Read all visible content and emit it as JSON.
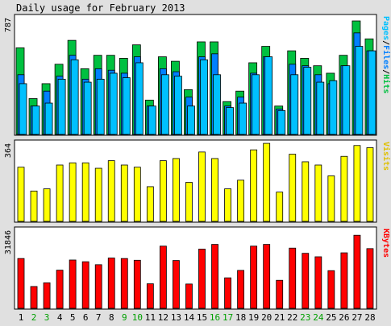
{
  "title": "Daily usage for February 2013",
  "colors": {
    "background": "#e0e0e0",
    "panel": "#ffffff",
    "hits": "#00c040",
    "files": "#0080ff",
    "pages": "#00c0ff",
    "visits": "#ffff00",
    "kbytes": "#ff0000",
    "weekday_label": "#000000",
    "weekend_label": "#00a000"
  },
  "chart_data": [
    {
      "type": "bar",
      "panel": "hits-files-pages",
      "legend": {
        "pages": "Pages",
        "files": "Files",
        "hits": "Hits",
        "separator": "/"
      },
      "ymax_label": "787",
      "ylim": [
        0,
        787
      ],
      "series": [
        {
          "name": "Hits",
          "values": [
            580,
            240,
            340,
            470,
            630,
            440,
            530,
            530,
            510,
            600,
            230,
            520,
            490,
            300,
            620,
            620,
            220,
            290,
            480,
            590,
            190,
            560,
            510,
            460,
            410,
            530,
            760,
            640
          ]
        },
        {
          "name": "Files",
          "values": [
            400,
            190,
            290,
            390,
            530,
            370,
            440,
            430,
            410,
            520,
            190,
            440,
            420,
            250,
            520,
            540,
            190,
            250,
            410,
            520,
            170,
            470,
            460,
            400,
            340,
            460,
            680,
            560
          ]
        },
        {
          "name": "Pages",
          "values": [
            340,
            190,
            210,
            370,
            500,
            350,
            370,
            410,
            380,
            480,
            190,
            400,
            390,
            190,
            500,
            400,
            180,
            210,
            400,
            520,
            160,
            400,
            450,
            350,
            360,
            460,
            590,
            560
          ]
        }
      ]
    },
    {
      "type": "bar",
      "panel": "visits",
      "legend": {
        "visits": "Visits"
      },
      "ymax_label": "364",
      "ylim": [
        0,
        364
      ],
      "series": [
        {
          "name": "Visits",
          "values": [
            250,
            140,
            150,
            260,
            270,
            270,
            245,
            280,
            260,
            250,
            160,
            280,
            290,
            180,
            320,
            290,
            150,
            190,
            330,
            360,
            135,
            310,
            275,
            260,
            210,
            300,
            350,
            340
          ]
        }
      ]
    },
    {
      "type": "bar",
      "panel": "kbytes",
      "legend": {
        "kbytes": "KBytes"
      },
      "ymax_label": "31846",
      "ylim": [
        0,
        31846
      ],
      "series": [
        {
          "name": "KBytes",
          "values": [
            20100,
            8800,
            10300,
            15400,
            19500,
            18800,
            17600,
            20300,
            20100,
            19400,
            9900,
            25100,
            19300,
            9800,
            23900,
            25800,
            12300,
            15300,
            25100,
            25800,
            11300,
            24300,
            22200,
            20800,
            15200,
            22400,
            29500,
            24100
          ]
        }
      ]
    }
  ],
  "days": [
    "1",
    "2",
    "3",
    "4",
    "5",
    "6",
    "7",
    "8",
    "9",
    "10",
    "11",
    "12",
    "13",
    "14",
    "15",
    "16",
    "17",
    "18",
    "19",
    "20",
    "21",
    "22",
    "23",
    "24",
    "25",
    "26",
    "27",
    "28"
  ],
  "weekend_days": [
    "2",
    "3",
    "9",
    "10",
    "16",
    "17",
    "23",
    "24"
  ]
}
